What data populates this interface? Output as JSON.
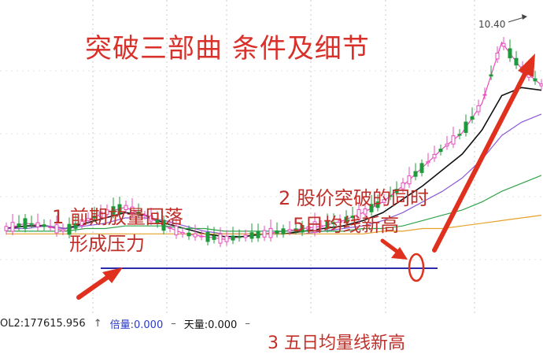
{
  "title": "突破三部曲   条件及细节",
  "annotations": {
    "a1_line1": "1 前期放量回落",
    "a1_line2": "形成压力",
    "a2_line1": "2 股价突破的同时",
    "a2_line2": "5日均线新高",
    "a3": "3 五日均量线新高"
  },
  "price_label": "10.40",
  "volume_row": {
    "vol2": "OL2:177615.956",
    "bei_label": "倍量:",
    "bei_value": "0.000",
    "tian_label": "天量:",
    "tian_value": "0.000",
    "up_arrow": "↑",
    "dash1": "–",
    "dash2": "–"
  },
  "colors": {
    "title": "#d9302a",
    "annotation": "#c0302a",
    "arrow": "#e0301e",
    "resistance_line": "#2b2aa8",
    "up_candle": "#1d9a3a",
    "ma5": "#e94bbd",
    "ma10": "#111111",
    "ma20": "#8a5ad6",
    "ma60": "#2fa34a",
    "ma120": "#e6a12b"
  },
  "chart_data": {
    "type": "line",
    "title": "突破三部曲   条件及细节",
    "peak_label": "10.40",
    "series": [
      {
        "values": [
          0.3,
          0.32,
          0.31,
          0.29,
          0.33,
          0.36,
          0.38,
          0.35,
          0.31,
          0.28,
          0.27,
          0.26,
          0.27,
          0.28,
          0.29,
          0.3,
          0.31,
          0.33,
          0.36,
          0.4,
          0.46,
          0.53,
          0.6,
          0.66,
          0.77,
          1.0,
          0.9,
          0.84
        ]
      },
      {
        "values": [
          0.3,
          0.31,
          0.31,
          0.3,
          0.32,
          0.34,
          0.36,
          0.35,
          0.32,
          0.3,
          0.28,
          0.27,
          0.27,
          0.28,
          0.28,
          0.29,
          0.3,
          0.31,
          0.33,
          0.36,
          0.41,
          0.46,
          0.52,
          0.58,
          0.67,
          0.8,
          0.83,
          0.82
        ]
      },
      {
        "values": [
          0.3,
          0.3,
          0.31,
          0.3,
          0.31,
          0.32,
          0.34,
          0.34,
          0.33,
          0.31,
          0.29,
          0.28,
          0.28,
          0.28,
          0.28,
          0.28,
          0.29,
          0.3,
          0.31,
          0.33,
          0.36,
          0.4,
          0.44,
          0.49,
          0.56,
          0.65,
          0.7,
          0.73
        ]
      },
      {
        "values": [
          0.29,
          0.29,
          0.29,
          0.29,
          0.3,
          0.3,
          0.31,
          0.31,
          0.31,
          0.3,
          0.3,
          0.29,
          0.29,
          0.29,
          0.29,
          0.29,
          0.29,
          0.29,
          0.3,
          0.3,
          0.31,
          0.33,
          0.35,
          0.37,
          0.4,
          0.44,
          0.47,
          0.5
        ]
      },
      {
        "values": [
          0.28,
          0.28,
          0.28,
          0.28,
          0.28,
          0.28,
          0.28,
          0.28,
          0.28,
          0.28,
          0.28,
          0.28,
          0.28,
          0.28,
          0.28,
          0.28,
          0.28,
          0.28,
          0.28,
          0.29,
          0.29,
          0.3,
          0.3,
          0.31,
          0.32,
          0.33,
          0.34,
          0.35
        ]
      }
    ],
    "resistance_level": 0.36,
    "ylim": [
      0,
      1.1
    ]
  }
}
